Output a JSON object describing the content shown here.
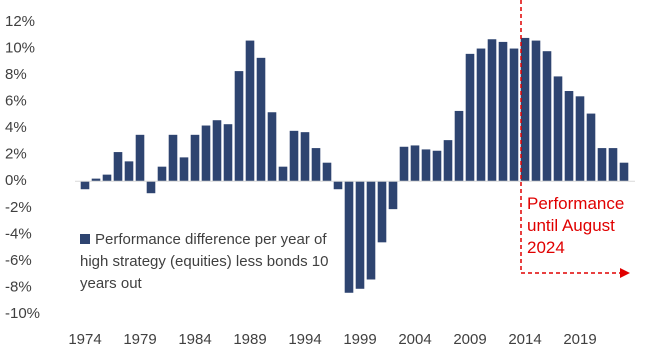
{
  "chart_data": {
    "type": "bar",
    "categories": [
      "1974",
      null,
      null,
      null,
      null,
      "1979",
      null,
      null,
      null,
      null,
      "1984",
      null,
      null,
      null,
      null,
      "1989",
      null,
      null,
      null,
      null,
      "1994",
      null,
      null,
      null,
      null,
      "1999",
      null,
      null,
      null,
      null,
      "2004",
      null,
      null,
      null,
      null,
      "2009",
      null,
      null,
      null,
      null,
      "2014",
      null,
      null,
      null,
      null,
      "2019",
      null,
      null,
      null,
      null
    ],
    "series": [
      {
        "name": "Performance difference per year of high strategy (equities) less bonds 10 years out",
        "color": "#2e4470",
        "values": [
          -0.6,
          0.2,
          0.5,
          2.2,
          1.5,
          3.5,
          -0.9,
          1.1,
          3.5,
          1.8,
          3.5,
          4.2,
          4.6,
          4.3,
          8.3,
          10.6,
          9.3,
          5.2,
          1.1,
          3.8,
          3.7,
          2.5,
          1.4,
          -0.6,
          -8.4,
          -8.1,
          -7.4,
          -4.6,
          -2.1,
          2.6,
          2.7,
          2.4,
          2.3,
          3.1,
          5.3,
          9.6,
          10.0,
          10.7,
          10.5,
          10.0,
          10.8,
          10.6,
          9.8,
          7.9,
          6.8,
          6.4,
          5.1,
          2.5,
          2.5,
          1.4
        ]
      }
    ],
    "ylim": [
      -10,
      12
    ],
    "yticks": [
      {
        "value": -10,
        "label": "-10%"
      },
      {
        "value": -8,
        "label": "-8%"
      },
      {
        "value": -6,
        "label": "-6%"
      },
      {
        "value": -4,
        "label": "-4%"
      },
      {
        "value": -2,
        "label": "-2%"
      },
      {
        "value": 0,
        "label": "0%"
      },
      {
        "value": 2,
        "label": "2%"
      },
      {
        "value": 4,
        "label": "4%"
      },
      {
        "value": 6,
        "label": "6%"
      },
      {
        "value": 8,
        "label": "8%"
      },
      {
        "value": 10,
        "label": "10%"
      },
      {
        "value": 12,
        "label": "12%"
      }
    ],
    "annotation": "Performance until August 2024",
    "annotation_color": "#e00000"
  }
}
